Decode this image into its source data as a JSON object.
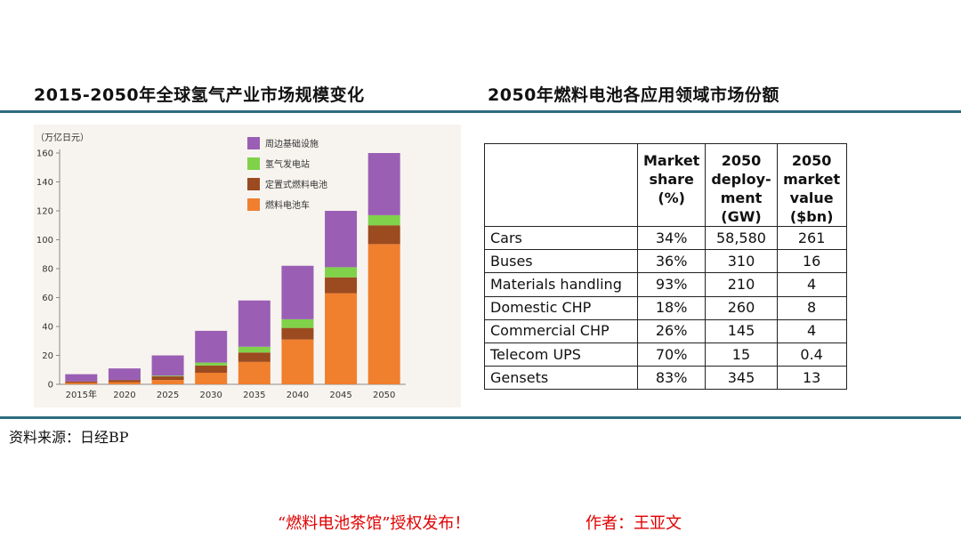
{
  "titles": {
    "left": "2015-2050年全球氢气产业市场规模变化",
    "right": "2050年燃料电池各应用领域市场份额"
  },
  "chart_data": {
    "type": "bar",
    "stacked": true,
    "unit_label": "（万亿日元）",
    "categories": [
      "2015年",
      "2020",
      "2025",
      "2030",
      "2035",
      "2040",
      "2045",
      "2050"
    ],
    "series": [
      {
        "name": "燃料电池车",
        "color": "#f07f2e",
        "values": [
          1,
          1.5,
          3,
          8,
          15.5,
          31,
          63,
          97
        ]
      },
      {
        "name": "定置式燃料电池",
        "color": "#9c4a1f",
        "values": [
          1,
          1.5,
          2.5,
          5,
          6.5,
          8,
          11,
          13
        ]
      },
      {
        "name": "氢气发电站",
        "color": "#7fd24a",
        "values": [
          0,
          0,
          0.5,
          2,
          4,
          6,
          7,
          7
        ]
      },
      {
        "name": "周边基础设施",
        "color": "#9a5fb4",
        "values": [
          5,
          8,
          14,
          22,
          32,
          37,
          39,
          43
        ]
      }
    ],
    "legend_order": [
      "周边基础设施",
      "氢气发电站",
      "定置式燃料电池",
      "燃料电池车"
    ],
    "ylim": [
      0,
      160
    ],
    "yticks": [
      0,
      20,
      40,
      60,
      80,
      100,
      120,
      140,
      160
    ],
    "grid": false,
    "legend_position": "top-left"
  },
  "table": {
    "headers": [
      "",
      "Market share (%)",
      "2050 deploy-ment (GW)",
      "2050 market value ($bn)"
    ],
    "rows": [
      [
        "Cars",
        "34%",
        "58,580",
        "261"
      ],
      [
        "Buses",
        "36%",
        "310",
        "16"
      ],
      [
        "Materials handling",
        "93%",
        "210",
        "4"
      ],
      [
        "Domestic CHP",
        "18%",
        "260",
        "8"
      ],
      [
        "Commercial CHP",
        "26%",
        "145",
        "4"
      ],
      [
        "Telecom UPS",
        "70%",
        "15",
        "0.4"
      ],
      [
        "Gensets",
        "83%",
        "345",
        "13"
      ]
    ]
  },
  "source": "资料来源：日经BP",
  "footer": {
    "left": "“燃料电池茶馆”授权发布！",
    "right": "作者：王亚文"
  },
  "colors": {
    "accent_rule": "#2e6b7e",
    "footer_red": "#e00000"
  }
}
